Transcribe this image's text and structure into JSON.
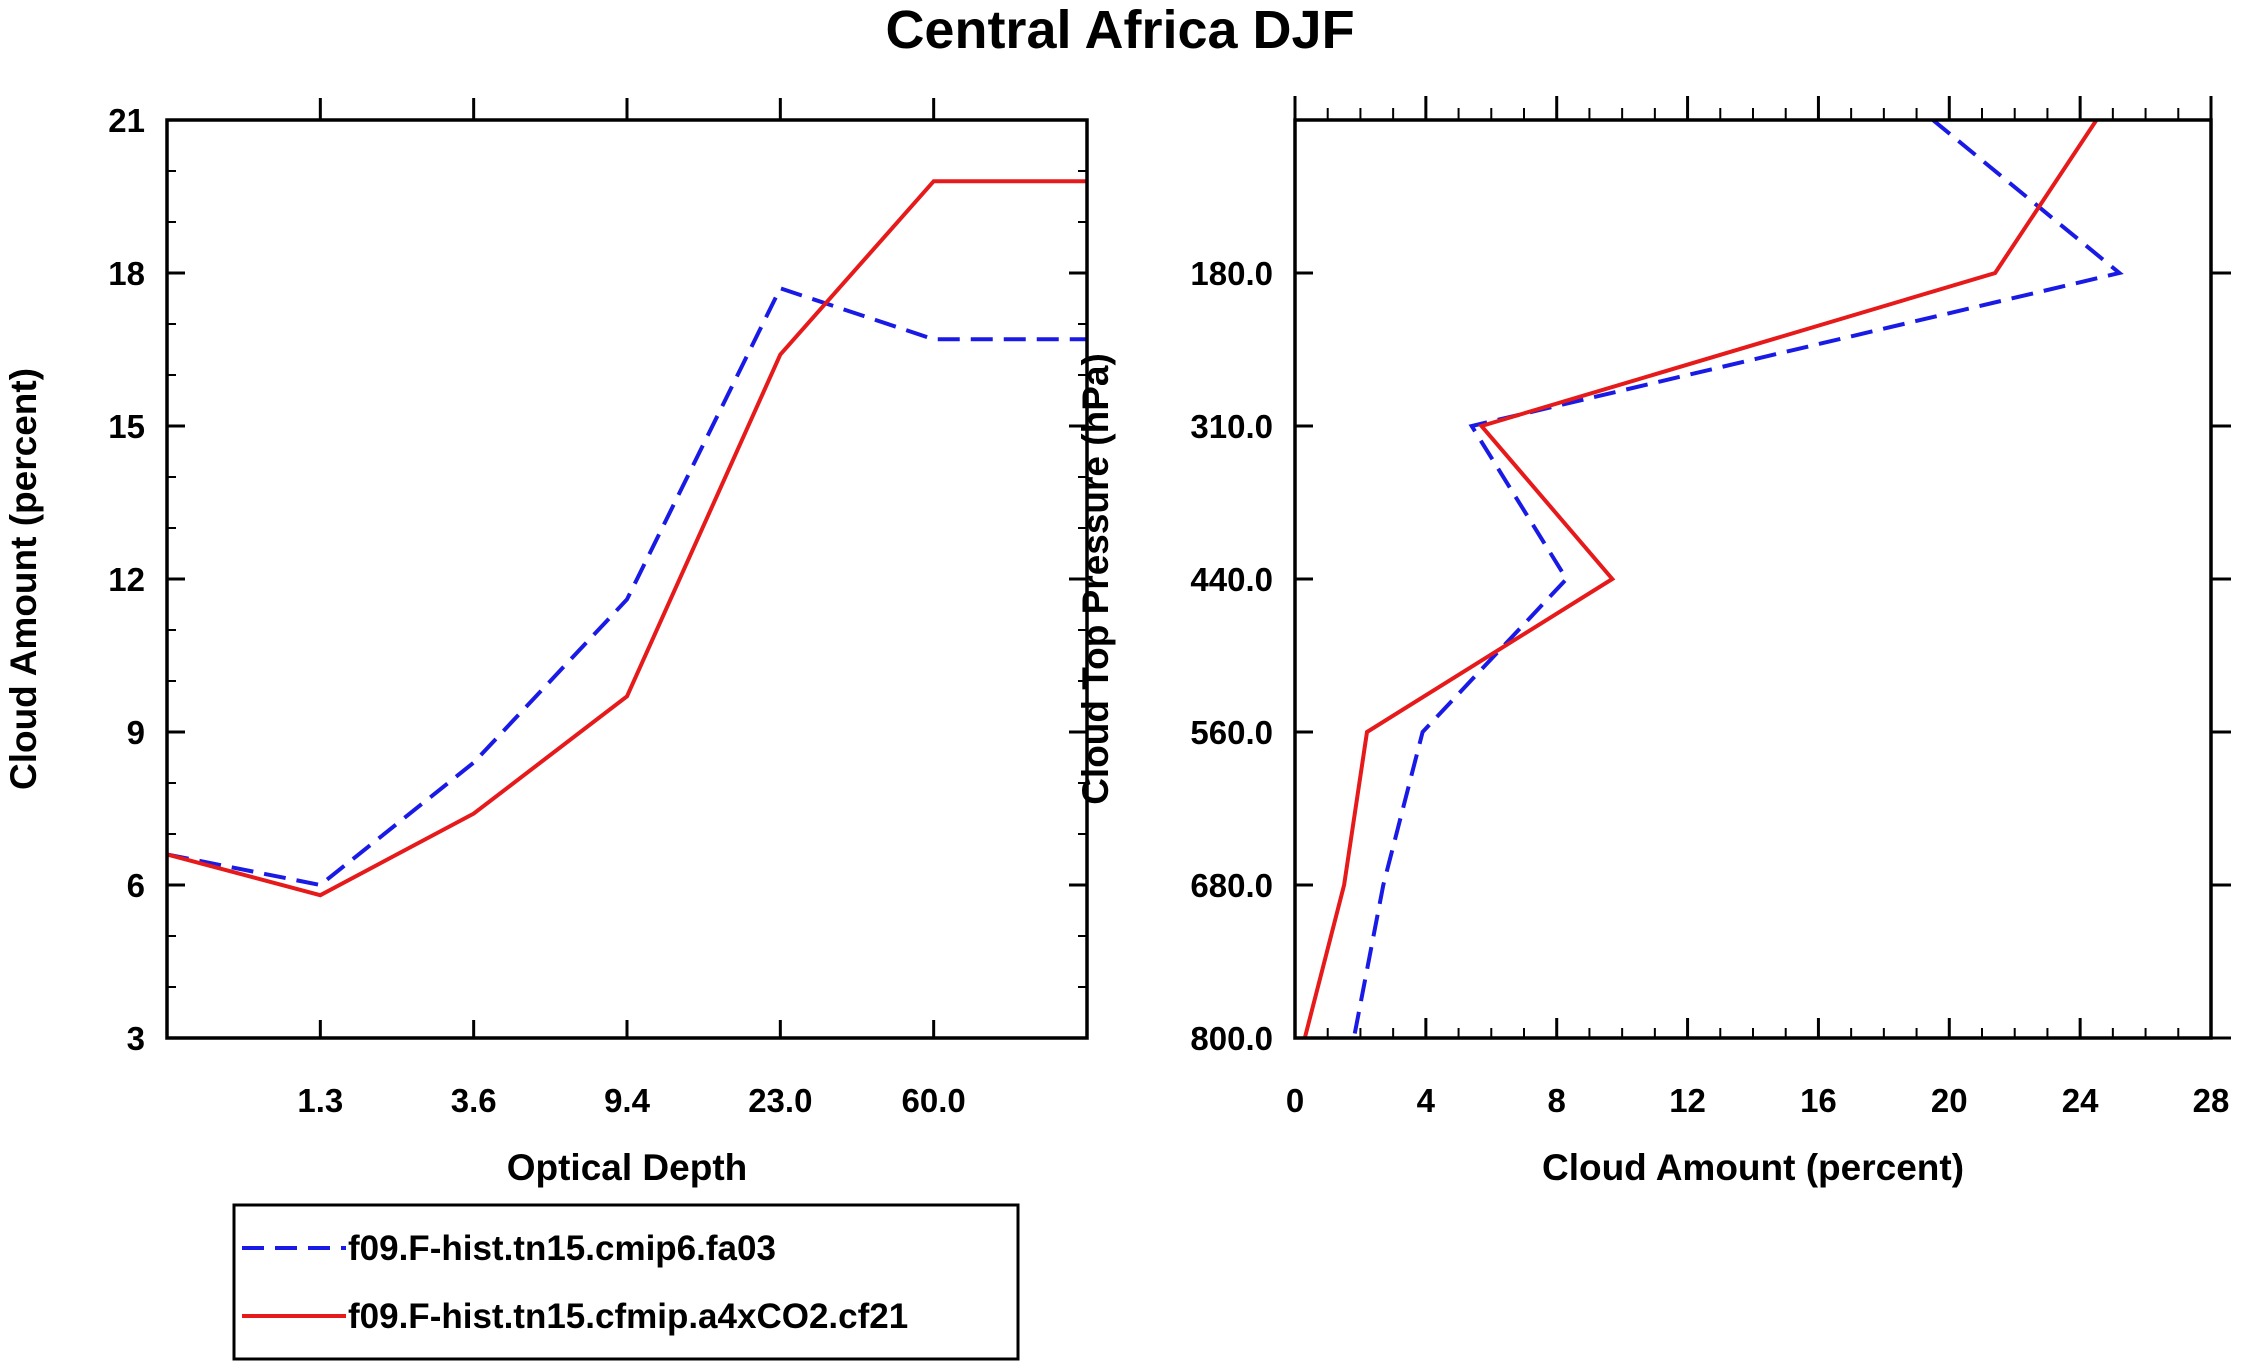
{
  "title": "Central Africa DJF",
  "colors": {
    "blue": "#1a1ae6",
    "red": "#e61a1a",
    "axis": "#000000"
  },
  "chart_data": [
    {
      "type": "line",
      "xlabel": "Optical Depth",
      "ylabel": "Cloud Amount (percent)",
      "x_tick_labels": [
        "1.3",
        "3.6",
        "9.4",
        "23.0",
        "60.0"
      ],
      "y_tick_labels": [
        "3",
        "6",
        "9",
        "12",
        "15",
        "18",
        "21"
      ],
      "ylim": [
        3,
        21
      ],
      "x_index_range": [
        0,
        6
      ],
      "x": [
        0,
        1,
        2,
        3,
        4,
        5,
        6
      ],
      "series": [
        {
          "name": "f09.F-hist.tn15.cmip6.fa03",
          "color": "blue",
          "style": "dashed",
          "values": [
            6.6,
            6.0,
            8.4,
            11.6,
            17.7,
            16.7,
            16.7
          ]
        },
        {
          "name": "f09.F-hist.tn15.cfmip.a4xCO2.cf21",
          "color": "red",
          "style": "solid",
          "values": [
            6.6,
            5.8,
            7.4,
            9.7,
            16.4,
            19.8,
            19.8
          ]
        }
      ]
    },
    {
      "type": "line",
      "xlabel": "Cloud Amount (percent)",
      "ylabel": "Cloud Top Pressure (hPa)",
      "x_tick_labels": [
        "0",
        "4",
        "8",
        "12",
        "16",
        "20",
        "24",
        "28"
      ],
      "xlim": [
        0,
        28
      ],
      "y_tick_labels": [
        "180.0",
        "310.0",
        "440.0",
        "560.0",
        "680.0",
        "800.0"
      ],
      "y_index_range": [
        0,
        6
      ],
      "y": [
        0,
        1,
        2,
        3,
        4,
        5,
        6
      ],
      "series": [
        {
          "name": "f09.F-hist.tn15.cmip6.fa03",
          "color": "blue",
          "style": "dashed",
          "values": [
            19.5,
            25.2,
            5.4,
            8.3,
            3.9,
            2.7,
            1.8
          ]
        },
        {
          "name": "f09.F-hist.tn15.cfmip.a4xCO2.cf21",
          "color": "red",
          "style": "solid",
          "values": [
            24.5,
            21.4,
            5.7,
            9.7,
            2.2,
            1.5,
            0.3
          ]
        }
      ]
    }
  ],
  "legend": [
    {
      "label": "f09.F-hist.tn15.cmip6.fa03",
      "color": "blue",
      "style": "dashed"
    },
    {
      "label": "f09.F-hist.tn15.cfmip.a4xCO2.cf21",
      "color": "red",
      "style": "solid"
    }
  ]
}
